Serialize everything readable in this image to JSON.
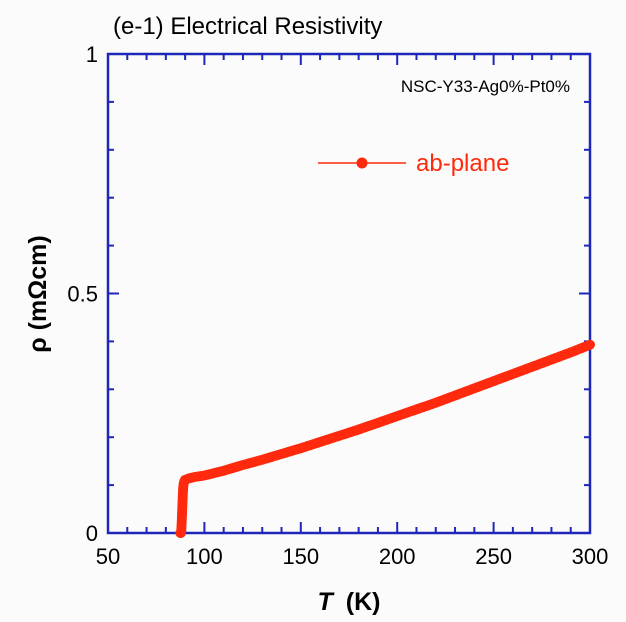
{
  "chart_data": {
    "type": "scatter",
    "title": "(e-1) Electrical Resistivity",
    "sample_label": "NSC-Y33-Ag0%-Pt0%",
    "xlabel": {
      "symbol": "T",
      "unit": "(K)"
    },
    "ylabel": "ρ (mΩcm)",
    "xlim": [
      50,
      300
    ],
    "ylim": [
      0,
      1
    ],
    "x_ticks": [
      50,
      100,
      150,
      200,
      250,
      300
    ],
    "y_ticks": [
      0,
      0.5,
      1
    ],
    "grid": false,
    "legend_position": "upper-right",
    "colors": {
      "series": "#ff2a0e",
      "axis": "#1f27b8"
    },
    "series": [
      {
        "name": "ab-plane",
        "x": [
          87.5,
          87.8,
          88.0,
          88.2,
          88.4,
          88.6,
          88.8,
          89.0,
          89.3,
          89.6,
          90,
          92,
          95,
          100,
          110,
          120,
          130,
          140,
          150,
          160,
          170,
          180,
          190,
          200,
          210,
          220,
          230,
          240,
          250,
          260,
          270,
          280,
          290,
          300
        ],
        "y": [
          0.0,
          0.0,
          0.005,
          0.02,
          0.04,
          0.06,
          0.08,
          0.095,
          0.104,
          0.108,
          0.111,
          0.114,
          0.117,
          0.12,
          0.13,
          0.142,
          0.153,
          0.165,
          0.177,
          0.19,
          0.203,
          0.216,
          0.23,
          0.244,
          0.258,
          0.272,
          0.287,
          0.302,
          0.317,
          0.332,
          0.347,
          0.362,
          0.377,
          0.393
        ]
      }
    ]
  }
}
